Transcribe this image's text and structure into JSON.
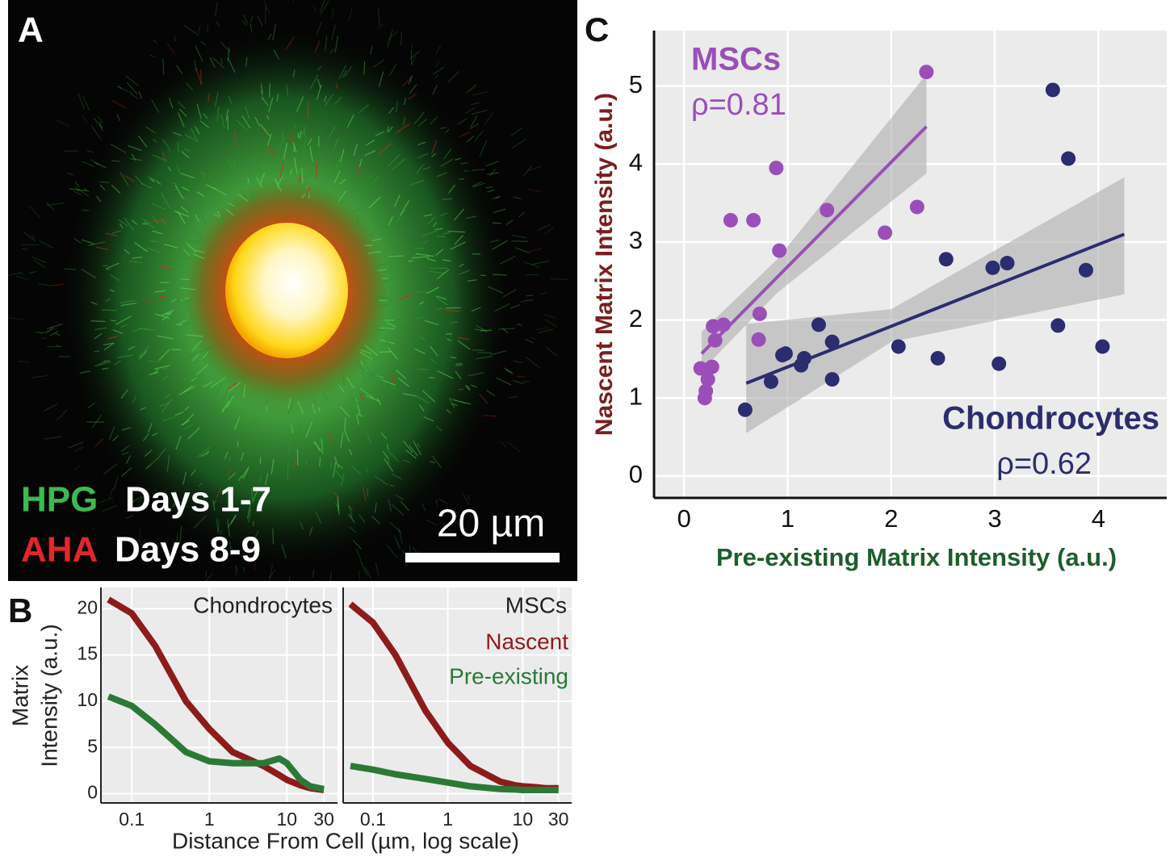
{
  "image_panel": {
    "panel_label": "A",
    "labels": [
      {
        "marker": "HPG",
        "text": "Days 1-7",
        "color": "#3dba4e"
      },
      {
        "marker": "AHA",
        "text": "Days 8-9",
        "color": "#e4262a"
      }
    ],
    "scale_bar": "20 µm"
  },
  "chart_data": [
    {
      "type": "line",
      "panel_label": "B",
      "title": "Chondrocytes",
      "y_label": [
        "Matrix",
        "Intensity (a.u.)"
      ],
      "x_label": "Distance From Cell (µm, log scale)",
      "log_x": true,
      "xlim": [
        0.04,
        45
      ],
      "xticks": [
        0.1,
        1,
        10,
        30
      ],
      "ylim": [
        -1,
        22.3
      ],
      "yticks": [
        0,
        5,
        10,
        15,
        20
      ],
      "ytick_labels": true,
      "grid": true,
      "x": [
        0.05,
        0.1,
        0.2,
        0.5,
        1,
        2,
        5,
        8,
        10,
        15,
        20,
        30
      ],
      "series": [
        {
          "color": "#8e1b1b",
          "values": [
            21,
            19.5,
            16,
            10,
            7,
            4.5,
            3,
            2,
            1.5,
            0.9,
            0.6,
            0.4
          ]
        },
        {
          "color": "#2a7a36",
          "values": [
            10.5,
            9.5,
            7.5,
            4.5,
            3.5,
            3.3,
            3.3,
            3.8,
            3.3,
            1.5,
            0.8,
            0.5
          ]
        }
      ]
    },
    {
      "type": "line",
      "title": "MSCs",
      "log_x": true,
      "xlim": [
        0.04,
        45
      ],
      "xticks": [
        0.1,
        1,
        10,
        30
      ],
      "ylim": [
        -1,
        22.3
      ],
      "yticks": [
        0,
        5,
        10,
        15,
        20
      ],
      "ytick_labels": false,
      "grid": true,
      "x": [
        0.05,
        0.1,
        0.2,
        0.5,
        1,
        2,
        5,
        8,
        10,
        15,
        20,
        30
      ],
      "series": [
        {
          "name": "Nascent",
          "color": "#8e1b1b",
          "values": [
            20.5,
            18.5,
            15,
            9,
            5.5,
            3,
            1.3,
            0.9,
            0.8,
            0.7,
            0.6,
            0.6
          ]
        },
        {
          "name": "Pre-existing",
          "color": "#2a7a36",
          "values": [
            3,
            2.6,
            2.1,
            1.6,
            1.2,
            0.8,
            0.5,
            0.45,
            0.4,
            0.4,
            0.4,
            0.4
          ]
        }
      ]
    },
    {
      "type": "scatter",
      "panel_label": "C",
      "y_label": "Nascent Matrix Intensity (a.u.)",
      "y_label_color": "#7a1f1f",
      "x_label": "Pre-existing Matrix Intensity (a.u.)",
      "x_label_color": "#1d5e2b",
      "xlim": [
        -0.29,
        4.66
      ],
      "xticks": [
        0,
        1,
        2,
        3,
        4
      ],
      "ylim": [
        -0.28,
        5.71
      ],
      "yticks": [
        0,
        1,
        2,
        3,
        4,
        5
      ],
      "grid": true,
      "series": [
        {
          "name": "MSCs",
          "label": "ρ=0.81",
          "color": "#9a4fb8",
          "x": [
            2.34,
            0.89,
            0.45,
            0.67,
            0.92,
            1.38,
            1.94,
            2.25,
            0.73,
            0.72,
            0.28,
            0.38,
            0.3,
            0.16,
            0.27,
            0.23,
            0.21,
            0.2
          ],
          "values": [
            5.18,
            3.95,
            3.28,
            3.28,
            2.89,
            3.41,
            3.12,
            3.45,
            2.08,
            1.75,
            1.92,
            1.94,
            1.74,
            1.38,
            1.4,
            1.24,
            1.09,
            1.0
          ],
          "fit": {
            "x": [
              0.17,
              0.9,
              2.34
            ],
            "values": [
              1.57,
              2.55,
              4.48
            ],
            "lower": [
              1.35,
              2.35,
              3.88
            ],
            "upper": [
              1.85,
              2.78,
              5.15
            ]
          }
        },
        {
          "name": "Chondrocytes",
          "label": "ρ=0.62",
          "color": "#2b2d6e",
          "x": [
            3.56,
            3.71,
            2.53,
            2.98,
            3.12,
            3.88,
            3.61,
            4.04,
            3.04,
            2.45,
            2.07,
            1.43,
            1.43,
            1.3,
            1.16,
            1.13,
            0.98,
            0.95,
            0.84,
            0.59
          ],
          "values": [
            4.95,
            4.07,
            2.78,
            2.67,
            2.73,
            2.64,
            1.93,
            1.66,
            1.44,
            1.51,
            1.66,
            1.24,
            1.72,
            1.94,
            1.51,
            1.42,
            1.57,
            1.55,
            1.21,
            0.85
          ],
          "fit": {
            "x": [
              0.6,
              2.0,
              4.25
            ],
            "values": [
              1.19,
              1.92,
              3.1
            ],
            "lower": [
              0.55,
              1.72,
              2.33
            ],
            "upper": [
              1.95,
              2.14,
              3.83
            ]
          }
        }
      ]
    }
  ]
}
